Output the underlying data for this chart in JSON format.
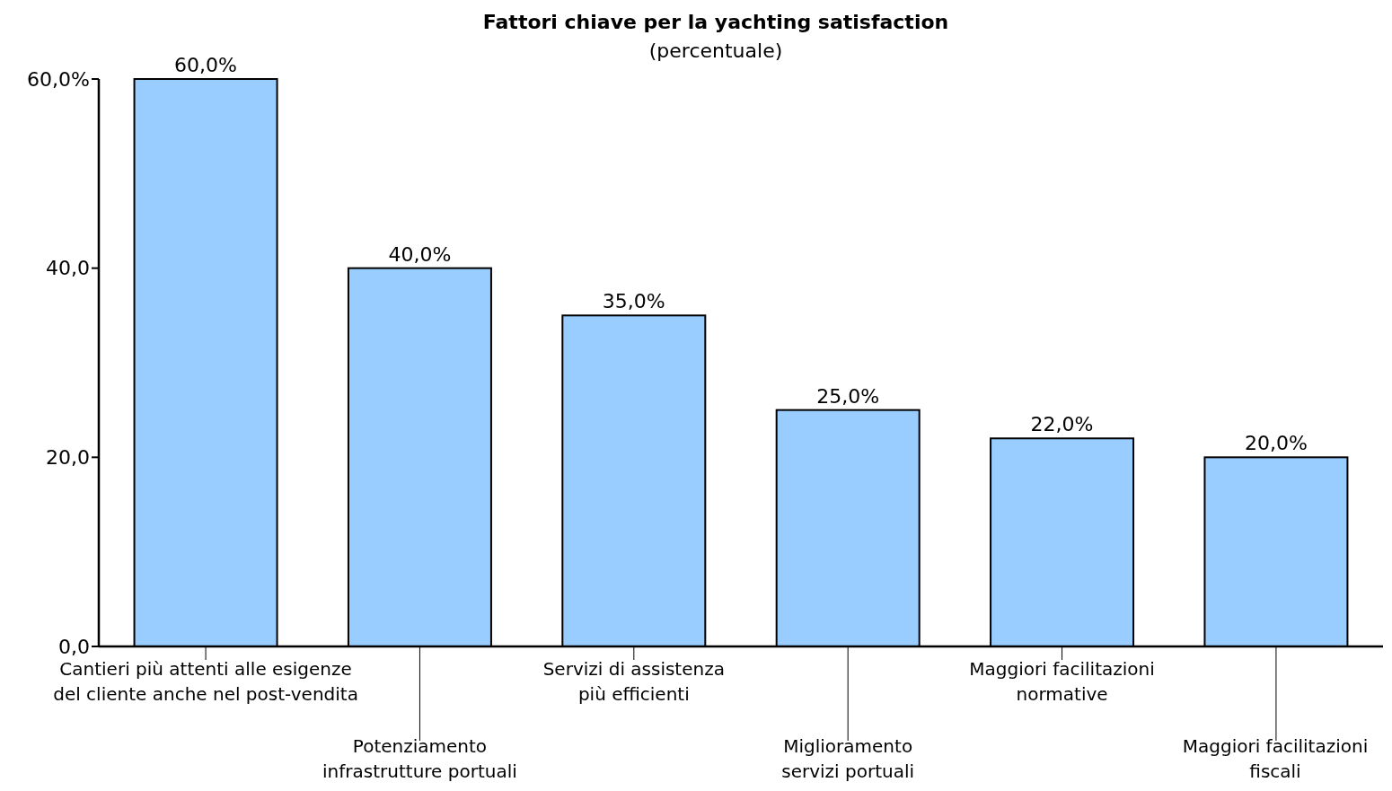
{
  "chart_data": {
    "type": "bar",
    "title": "Fattori chiave per la yachting satisfaction",
    "subtitle": "(percentuale)",
    "categories": [
      "Cantieri più attenti alle esigenze del cliente anche nel post-vendita",
      "Potenziamento infrastrutture portuali",
      "Servizi di assistenza più efficienti",
      "Miglioramento servizi portuali",
      "Maggiori facilitazioni normative",
      "Maggiori facilitazioni fiscali"
    ],
    "values": [
      60,
      40,
      35,
      25,
      22,
      20
    ],
    "value_labels": [
      "60,0%",
      "40,0%",
      "35,0%",
      "25,0%",
      "22,0%",
      "20,0%"
    ],
    "color": "#99ccff",
    "ylim": [
      0,
      60
    ],
    "yticks": [
      {
        "value": 0,
        "label": "0,0"
      },
      {
        "value": 20,
        "label": "20,0"
      },
      {
        "value": 40,
        "label": "40,0"
      },
      {
        "value": 60,
        "label": "60,0%"
      }
    ]
  }
}
